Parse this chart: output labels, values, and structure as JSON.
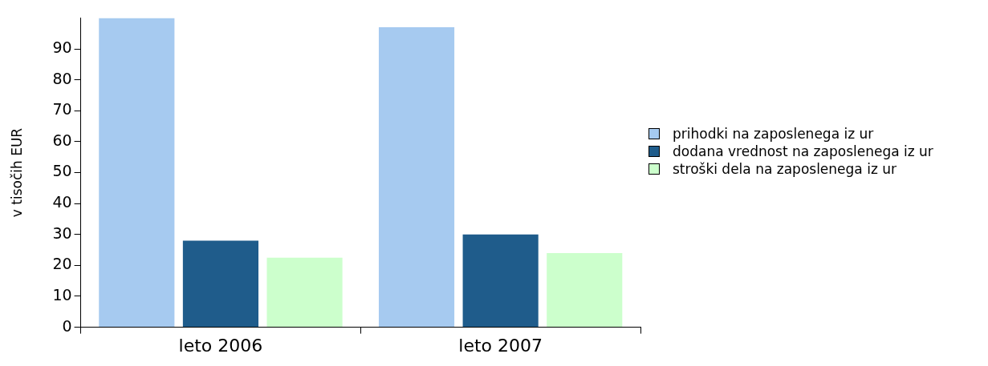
{
  "chart_data": {
    "type": "bar",
    "ylabel": "v tisočih EUR",
    "categories": [
      "leto 2006",
      "leto 2007"
    ],
    "series": [
      {
        "name": "prihodki na zaposlenega iz ur",
        "color": "#a6caf0",
        "values": [
          100,
          97
        ]
      },
      {
        "name": "dodana vrednost na zaposlenega iz ur",
        "color": "#1f5c8b",
        "values": [
          28,
          30
        ]
      },
      {
        "name": "stroški dela na zaposlenega iz ur",
        "color": "#ccffcc",
        "values": [
          22.5,
          24
        ]
      }
    ],
    "ylim": [
      0,
      100
    ],
    "yticks": [
      0,
      10,
      20,
      30,
      40,
      50,
      60,
      70,
      80,
      90
    ],
    "grid": false,
    "legend": "right"
  }
}
